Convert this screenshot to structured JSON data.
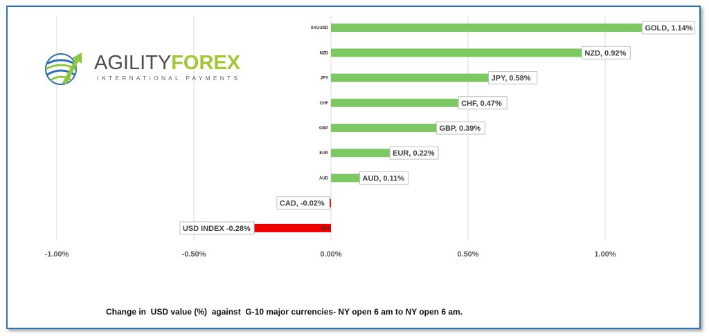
{
  "logo": {
    "brand_part1": "AGILITY",
    "brand_part2": "FOREX",
    "tagline": "INTERNATIONAL PAYMENTS",
    "colors": {
      "green": "#8dc63f",
      "blue": "#2f6fb1",
      "gray": "#4d4d4d"
    }
  },
  "caption": "Change in  USD value (%)  against  G-10 major currencies- NY open 6 am to NY open 6 am.",
  "chart_data": {
    "type": "bar",
    "orientation": "horizontal",
    "categories": [
      "XAUUSD",
      "NZD",
      "JPY",
      "CHF",
      "GBP",
      "EUR",
      "AUD",
      "CAD",
      "DXY"
    ],
    "values": [
      1.14,
      0.92,
      0.58,
      0.47,
      0.39,
      0.22,
      0.11,
      -0.02,
      -0.28
    ],
    "data_labels": [
      "GOLD, 1.14%",
      "NZD, 0.92%",
      "JPY, 0.58%",
      "CHF, 0.47%",
      "GBP, 0.39%",
      "EUR, 0.22%",
      "AUD, 0.11%",
      "CAD, -0.02%",
      "USD INDEX -0.28%"
    ],
    "xlim": [
      -1.0,
      1.0
    ],
    "xticks": [
      -1.0,
      -0.5,
      0.0,
      0.5,
      1.0
    ],
    "xtick_labels": [
      "-1.00%",
      "-0.50%",
      "0.00%",
      "0.50%",
      "1.00%"
    ],
    "grid": true,
    "colors": {
      "positive": "#7dc863",
      "negative": "#ee0000",
      "grid": "#d9d9d9"
    }
  }
}
